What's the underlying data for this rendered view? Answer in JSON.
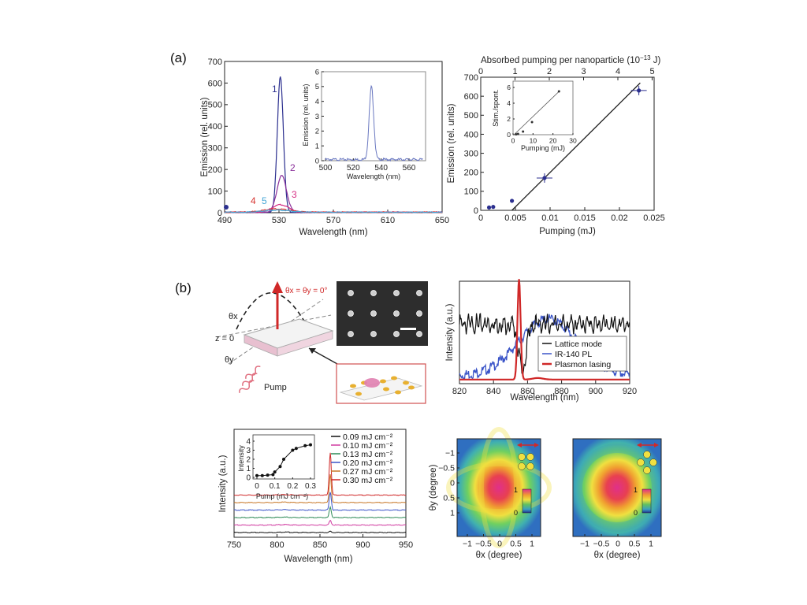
{
  "figure": {
    "panel_labels": [
      "(a)",
      "(b)"
    ]
  },
  "a1": {
    "ylabel": "Emission (rel. units)",
    "xlabel": "Wavelength (nm)",
    "xticks": [
      "490",
      "530",
      "570",
      "610",
      "650"
    ],
    "yticks": [
      "0",
      "100",
      "200",
      "300",
      "400",
      "500",
      "600",
      "700"
    ],
    "curve_labels": [
      "1",
      "2",
      "3",
      "4",
      "5"
    ],
    "inset": {
      "ylabel": "Emission (rel. units)",
      "xlabel": "Wavelength (nm)",
      "xticks": [
        "500",
        "520",
        "540",
        "560"
      ],
      "yticks": [
        "0",
        "1",
        "2",
        "3",
        "4",
        "5",
        "6"
      ]
    }
  },
  "a2": {
    "top_axis_label": "Absorbed pumping per nanoparticle (10",
    "top_axis_exp": "−13",
    "top_axis_unit": " J)",
    "top_ticks": [
      "0",
      "1",
      "2",
      "3",
      "4",
      "5"
    ],
    "ylabel": "Emission (rel. units)",
    "xlabel": "Pumping (mJ)",
    "xticks": [
      "0",
      "0.005",
      "0.01",
      "0.015",
      "0.02",
      "0.025"
    ],
    "yticks": [
      "0",
      "100",
      "200",
      "300",
      "400",
      "500",
      "600",
      "700"
    ],
    "inset": {
      "ylabel": "Stim./spont.",
      "xlabel": "Pumping (mJ)",
      "xticks": [
        "0",
        "10",
        "20",
        "30"
      ],
      "yticks": [
        "0",
        "2",
        "4",
        "6"
      ]
    }
  },
  "b1": {
    "angle_label": "θx = θy = 0°",
    "theta_x": "θx",
    "theta_y": "θy",
    "z_label": "z = 0",
    "pump_label": "Pump"
  },
  "b2": {
    "ylabel": "Intensity (a.u.)",
    "xlabel": "Wavelength (nm)",
    "xticks": [
      "820",
      "840",
      "860",
      "880",
      "900",
      "920"
    ],
    "legend": [
      "Lattice mode",
      "IR-140 PL",
      "Plasmon lasing"
    ]
  },
  "b3": {
    "ylabel": "Intensity (a.u.)",
    "xlabel": "Wavelength (nm)",
    "xticks": [
      "750",
      "800",
      "850",
      "900",
      "950"
    ],
    "legend": [
      "0.09 mJ cm⁻²",
      "0.10 mJ cm⁻²",
      "0.13 mJ cm⁻²",
      "0.20 mJ cm⁻²",
      "0.27 mJ cm⁻²",
      "0.30 mJ cm⁻²"
    ],
    "inset": {
      "ylabel": "Intensity",
      "xlabel": "Pump (mJ cm⁻²)",
      "xticks": [
        "0",
        "0.1",
        "0.2",
        "0.3"
      ],
      "yticks": [
        "0",
        "1",
        "2",
        "3",
        "4"
      ]
    }
  },
  "b4": {
    "ylabel": "θy (degree)",
    "xlabel": "θx (degree)",
    "xticks": [
      "−1",
      "−0.5",
      "0",
      "0.5",
      "1"
    ],
    "yticks": [
      "−1",
      "−0.5",
      "0",
      "0.5",
      "1"
    ],
    "cbar_ticks": [
      "1",
      "0"
    ]
  },
  "b5": {
    "xlabel": "θx (degree)",
    "xticks": [
      "−1",
      "−0.5",
      "0",
      "0.5",
      "1"
    ],
    "cbar_ticks": [
      "1",
      "0"
    ]
  },
  "colors": {
    "navy": "#2b2f8f",
    "purple": "#8a2f9a",
    "magenta": "#d62f84",
    "red": "#d6332f",
    "lightblue": "#44a6d6",
    "blue": "#3a54c8",
    "green": "#2e8b57",
    "plasmon": "#d02828"
  },
  "chart_data": [
    {
      "id": "a1",
      "type": "line",
      "title": "",
      "xlabel": "Wavelength (nm)",
      "ylabel": "Emission (rel. units)",
      "xlim": [
        490,
        650
      ],
      "ylim": [
        0,
        700
      ],
      "series": [
        {
          "name": "1",
          "peak_x": 531,
          "peak_y": 630,
          "width": 2.2
        },
        {
          "name": "2",
          "peak_x": 532,
          "peak_y": 170,
          "width": 3.5
        },
        {
          "name": "3",
          "peak_x": 531,
          "peak_y": 35,
          "width": 6
        },
        {
          "name": "4",
          "peak_x": 528,
          "peak_y": 15,
          "width": 10
        },
        {
          "name": "5",
          "peak_x": 528,
          "peak_y": 10,
          "width": 10
        }
      ]
    },
    {
      "id": "a1-inset",
      "type": "line",
      "xlabel": "Wavelength (nm)",
      "ylabel": "Emission (rel. units)",
      "xlim": [
        500,
        570
      ],
      "ylim": [
        0,
        6
      ],
      "series": [
        {
          "name": "inset",
          "peak_x": 533,
          "peak_y": 4.9,
          "width": 1.6
        }
      ]
    },
    {
      "id": "a2",
      "type": "scatter",
      "xlabel": "Pumping (mJ)",
      "ylabel": "Emission (rel. units)",
      "xlim": [
        0,
        0.025
      ],
      "ylim": [
        0,
        700
      ],
      "points": [
        {
          "x": 0.0012,
          "y": 15
        },
        {
          "x": 0.0018,
          "y": 18
        },
        {
          "x": 0.0045,
          "y": 50
        },
        {
          "x": 0.0092,
          "y": 170
        },
        {
          "x": 0.0228,
          "y": 630
        }
      ],
      "fit_line": [
        [
          0.0045,
          0
        ],
        [
          0.023,
          670
        ]
      ]
    },
    {
      "id": "a2-inset",
      "type": "scatter",
      "xlabel": "Pumping (mJ)",
      "ylabel": "Stim./spont.",
      "xlim": [
        0,
        30
      ],
      "ylim": [
        0,
        6
      ],
      "points": [
        {
          "x": 1.5,
          "y": 0.05
        },
        {
          "x": 2.5,
          "y": 0.1
        },
        {
          "x": 5,
          "y": 0.4
        },
        {
          "x": 9.5,
          "y": 1.6
        },
        {
          "x": 23,
          "y": 5.5
        }
      ]
    },
    {
      "id": "b2",
      "type": "line",
      "xlabel": "Wavelength (nm)",
      "ylabel": "Intensity (a.u.)",
      "xlim": [
        820,
        920
      ],
      "series": [
        {
          "name": "Lattice mode"
        },
        {
          "name": "IR-140 PL"
        },
        {
          "name": "Plasmon lasing",
          "peak_x": 855
        }
      ]
    },
    {
      "id": "b3",
      "type": "line",
      "xlabel": "Wavelength (nm)",
      "ylabel": "Intensity (a.u.)",
      "xlim": [
        750,
        950
      ],
      "series": [
        {
          "name": "0.09 mJ cm⁻²",
          "peak_x": 862
        },
        {
          "name": "0.10 mJ cm⁻²",
          "peak_x": 862
        },
        {
          "name": "0.13 mJ cm⁻²",
          "peak_x": 862
        },
        {
          "name": "0.20 mJ cm⁻²",
          "peak_x": 862
        },
        {
          "name": "0.27 mJ cm⁻²",
          "peak_x": 862
        },
        {
          "name": "0.30 mJ cm⁻²",
          "peak_x": 862
        }
      ]
    },
    {
      "id": "b3-inset",
      "type": "line",
      "xlabel": "Pump (mJ cm⁻²)",
      "ylabel": "Intensity",
      "xlim": [
        0,
        0.3
      ],
      "ylim": [
        0,
        4
      ],
      "points": [
        {
          "x": 0.0,
          "y": 0.2
        },
        {
          "x": 0.03,
          "y": 0.2
        },
        {
          "x": 0.06,
          "y": 0.25
        },
        {
          "x": 0.09,
          "y": 0.3
        },
        {
          "x": 0.1,
          "y": 0.6
        },
        {
          "x": 0.13,
          "y": 1.2
        },
        {
          "x": 0.15,
          "y": 2.0
        },
        {
          "x": 0.2,
          "y": 3.0
        },
        {
          "x": 0.22,
          "y": 3.2
        },
        {
          "x": 0.27,
          "y": 3.5
        },
        {
          "x": 0.3,
          "y": 3.6
        }
      ]
    }
  ]
}
